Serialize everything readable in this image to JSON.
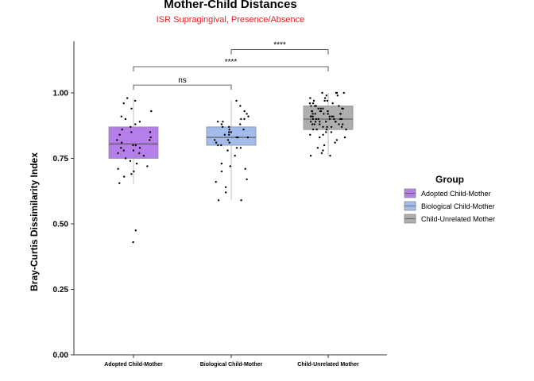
{
  "chart_data": {
    "type": "box",
    "title": "Mother-Child Distances",
    "subtitle": "ISR Supragingival, Presence/Absence",
    "ylabel": "Bray-Curtis Dissimilarity Index",
    "xlabel": "",
    "ylim": [
      0,
      1.2
    ],
    "yticks": [
      "0.00",
      "0.25",
      "0.50",
      "0.75",
      "1.00"
    ],
    "categories": [
      "Adopted Child-Mother",
      "Biological Child-Mother",
      "Child-Unrelated Mother"
    ],
    "legend": {
      "title": "Group",
      "position": "right",
      "entries": [
        "Adopted Child-Mother",
        "Biological Child-Mother",
        "Child-Unrelated Mother"
      ]
    },
    "colors": {
      "groups": [
        "#b57ee9",
        "#a3bcec",
        "#aeaeae"
      ],
      "subtitle": "#e4222a"
    },
    "boxes": [
      {
        "name": "Adopted Child-Mother",
        "q1": 0.75,
        "median": 0.805,
        "q3": 0.87,
        "whisker_low": 0.65,
        "whisker_high": 0.98
      },
      {
        "name": "Biological Child-Mother",
        "q1": 0.8,
        "median": 0.83,
        "q3": 0.87,
        "whisker_low": 0.59,
        "whisker_high": 0.97
      },
      {
        "name": "Child-Unrelated Mother",
        "q1": 0.86,
        "median": 0.9,
        "q3": 0.95,
        "whisker_low": 0.76,
        "whisker_high": 1.0
      }
    ],
    "points": [
      {
        "group": 0,
        "values": [
          0.43,
          0.475,
          0.655,
          0.68,
          0.69,
          0.7,
          0.71,
          0.72,
          0.73,
          0.74,
          0.75,
          0.76,
          0.77,
          0.77,
          0.78,
          0.78,
          0.79,
          0.79,
          0.8,
          0.8,
          0.81,
          0.82,
          0.82,
          0.83,
          0.84,
          0.85,
          0.85,
          0.86,
          0.87,
          0.88,
          0.89,
          0.9,
          0.91,
          0.93,
          0.94,
          0.96,
          0.97,
          0.98
        ]
      },
      {
        "group": 1,
        "values": [
          0.59,
          0.59,
          0.62,
          0.64,
          0.66,
          0.67,
          0.7,
          0.71,
          0.72,
          0.73,
          0.76,
          0.78,
          0.79,
          0.79,
          0.8,
          0.8,
          0.81,
          0.81,
          0.82,
          0.82,
          0.83,
          0.83,
          0.83,
          0.84,
          0.84,
          0.85,
          0.85,
          0.86,
          0.86,
          0.87,
          0.87,
          0.88,
          0.88,
          0.89,
          0.89,
          0.9,
          0.9,
          0.91,
          0.92,
          0.93,
          0.95,
          0.97
        ]
      },
      {
        "group": 2,
        "values": [
          0.76,
          0.76,
          0.77,
          0.78,
          0.79,
          0.8,
          0.81,
          0.82,
          0.83,
          0.83,
          0.84,
          0.84,
          0.85,
          0.85,
          0.86,
          0.86,
          0.86,
          0.87,
          0.87,
          0.87,
          0.88,
          0.88,
          0.88,
          0.88,
          0.89,
          0.89,
          0.89,
          0.89,
          0.9,
          0.9,
          0.9,
          0.9,
          0.9,
          0.91,
          0.91,
          0.91,
          0.91,
          0.92,
          0.92,
          0.92,
          0.92,
          0.93,
          0.93,
          0.93,
          0.93,
          0.94,
          0.94,
          0.94,
          0.95,
          0.95,
          0.95,
          0.96,
          0.96,
          0.96,
          0.97,
          0.97,
          0.97,
          0.98,
          0.98,
          0.99,
          0.99,
          1.0,
          1.0,
          1.0,
          1.0,
          0.91,
          0.89,
          0.87,
          0.92,
          0.94,
          0.9,
          0.88,
          0.86,
          0.93,
          0.95,
          0.91,
          0.89,
          0.92,
          0.9,
          0.94
        ]
      }
    ],
    "significance": [
      {
        "from": 0,
        "to": 1,
        "y": 1.03,
        "label": "ns"
      },
      {
        "from": 0,
        "to": 2,
        "y": 1.1,
        "label": "****"
      },
      {
        "from": 1,
        "to": 2,
        "y": 1.165,
        "label": "****"
      }
    ]
  }
}
